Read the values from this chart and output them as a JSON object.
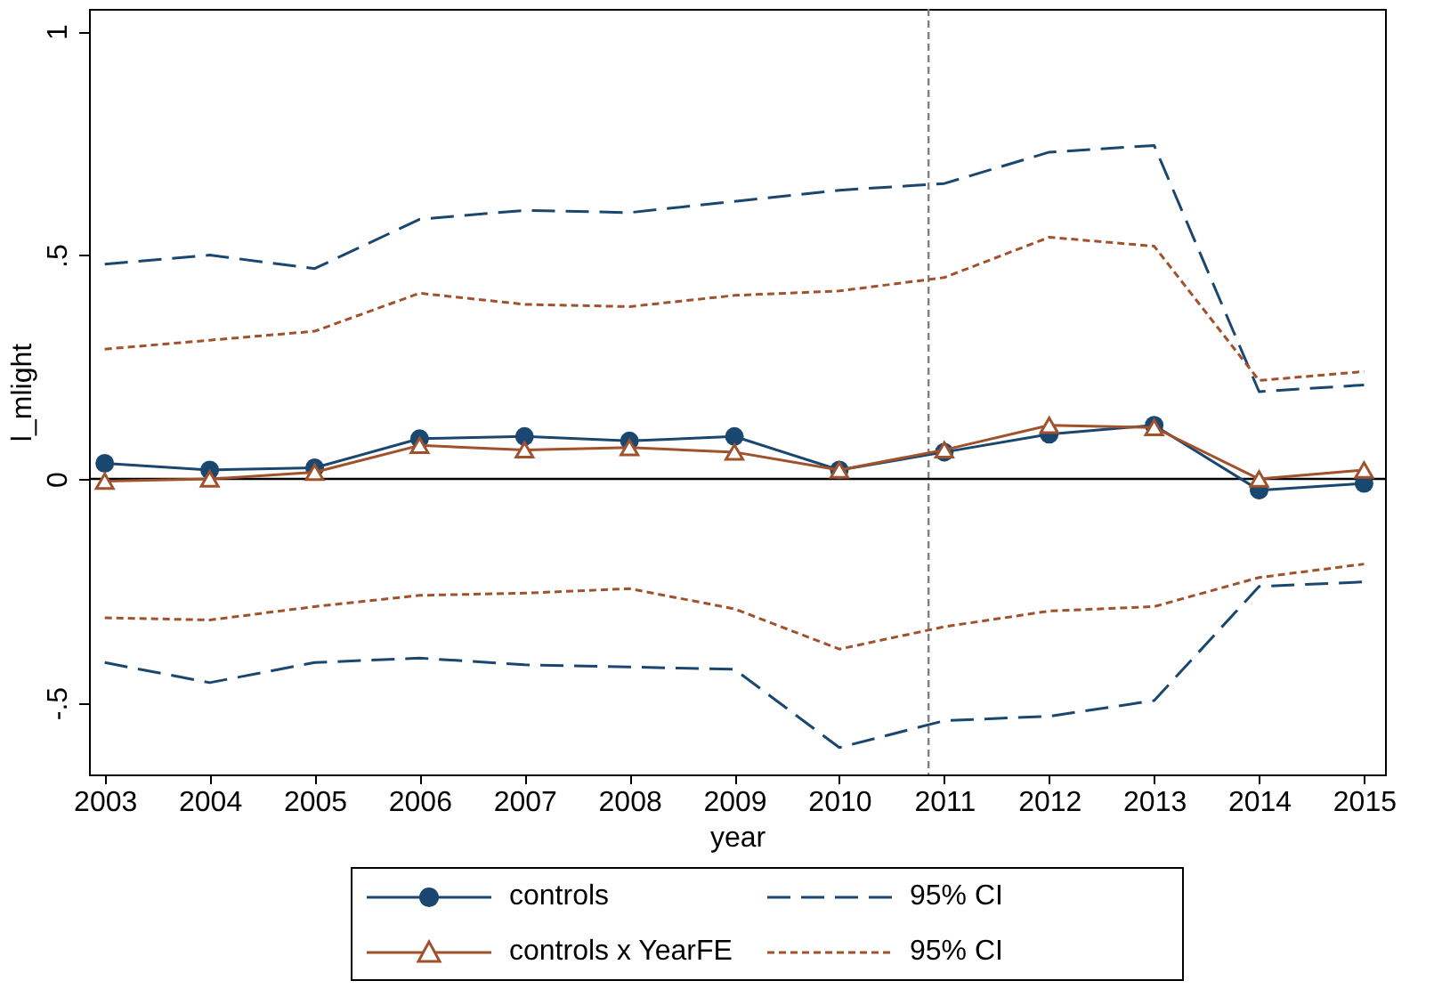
{
  "chart_data": {
    "type": "line",
    "xlabel": "year",
    "ylabel": "l_mlight",
    "x": [
      2003,
      2004,
      2005,
      2006,
      2007,
      2008,
      2009,
      2010,
      2011,
      2012,
      2013,
      2014,
      2015
    ],
    "xlim": [
      2002.85,
      2015.2
    ],
    "xticks": [
      2003,
      2004,
      2005,
      2006,
      2007,
      2008,
      2009,
      2010,
      2011,
      2012,
      2013,
      2014,
      2015
    ],
    "ylim": [
      -0.66,
      1.05
    ],
    "yticks": [
      {
        "value": -0.5,
        "label": "-.5"
      },
      0,
      {
        "value": 0.5,
        "label": ".5"
      },
      1
    ],
    "grid": false,
    "legend": "bottom",
    "series": [
      {
        "name": "controls",
        "color": "#1a476f",
        "marker": "circle",
        "line_style": "solid",
        "values": [
          0.035,
          0.02,
          0.025,
          0.09,
          0.095,
          0.085,
          0.095,
          0.02,
          0.06,
          0.1,
          0.12,
          -0.025,
          -0.01
        ]
      },
      {
        "name": "controls x YearFE",
        "color": "#a0522d",
        "marker": "triangle",
        "line_style": "solid",
        "values": [
          -0.005,
          0,
          0.015,
          0.075,
          0.065,
          0.07,
          0.06,
          0.02,
          0.065,
          0.12,
          0.115,
          0,
          0.02
        ]
      },
      {
        "name": "95% CI",
        "color": "#1a476f",
        "marker": "none",
        "line_style": "dashed",
        "values": [
          0.48,
          0.5,
          0.47,
          0.58,
          0.6,
          0.595,
          0.62,
          0.645,
          0.66,
          0.73,
          0.745,
          0.195,
          0.21
        ]
      },
      {
        "name": "95% CI",
        "color": "#a0522d",
        "marker": "none",
        "line_style": "dotted",
        "values": [
          0.29,
          0.31,
          0.33,
          0.415,
          0.39,
          0.385,
          0.41,
          0.42,
          0.45,
          0.54,
          0.52,
          0.22,
          0.24
        ]
      },
      {
        "color": "#1a476f",
        "marker": "none",
        "line_style": "dashed",
        "values": [
          -0.41,
          -0.455,
          -0.41,
          -0.4,
          -0.415,
          -0.42,
          -0.425,
          -0.6,
          -0.54,
          -0.53,
          -0.495,
          -0.24,
          -0.23
        ]
      },
      {
        "color": "#a0522d",
        "marker": "none",
        "line_style": "dotted",
        "values": [
          -0.31,
          -0.315,
          -0.285,
          -0.26,
          -0.255,
          -0.245,
          -0.29,
          -0.38,
          -0.33,
          -0.295,
          -0.285,
          -0.22,
          -0.19
        ]
      }
    ],
    "ref_lines": [
      {
        "axis": "y",
        "value": 0,
        "color": "#000000",
        "line_style": "solid"
      },
      {
        "axis": "x",
        "value": 2010.85,
        "color": "#808080",
        "line_style": "dotted"
      }
    ]
  }
}
